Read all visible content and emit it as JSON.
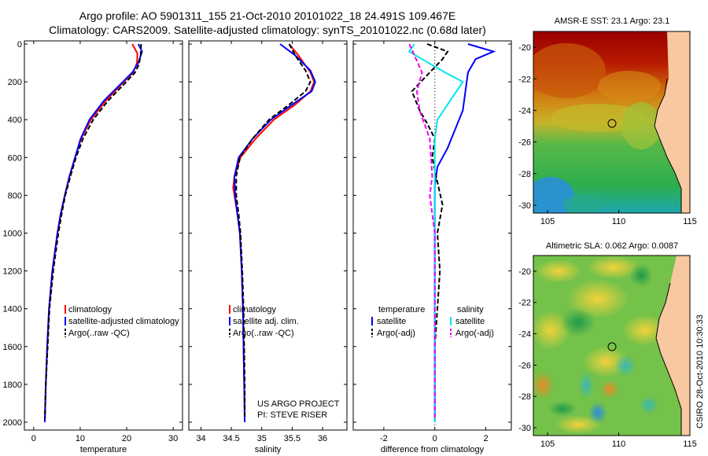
{
  "header": {
    "line1": "Argo profile: AO 5901311_155 21-Oct-2010 20101022_18 24.491S 109.467E",
    "line2": "Climatology: CARS2009. Satellite-adjusted climatology: synTS_20101022.nc (0.68d later)"
  },
  "side_stamp": "CSIRO 28-Oct-2010 10:30:33",
  "colors": {
    "red": "#ff0000",
    "blue": "#0000ff",
    "black": "#000000",
    "cyan": "#00e5ee",
    "magenta": "#ee00ee"
  },
  "chart_data": [
    {
      "type": "line",
      "id": "temperature",
      "xlabel": "temperature",
      "xlim": [
        -2,
        32
      ],
      "ylim": [
        2000,
        0
      ],
      "reversed_y": true,
      "xticks": [
        "0",
        "10",
        "20",
        "30"
      ],
      "yticks": [
        "0",
        "200",
        "400",
        "600",
        "800",
        "1000",
        "1200",
        "1400",
        "1600",
        "1800",
        "2000"
      ],
      "legend": [
        "climatology",
        "satellite-adjusted climatology",
        "Argo(..raw -QC)"
      ],
      "series": [
        {
          "name": "climatology",
          "color": "red",
          "points": [
            [
              21.2,
              0
            ],
            [
              22.3,
              50
            ],
            [
              22.2,
              100
            ],
            [
              21.4,
              150
            ],
            [
              19.4,
              200
            ],
            [
              15.5,
              300
            ],
            [
              12.3,
              400
            ],
            [
              10.2,
              500
            ],
            [
              8.9,
              600
            ],
            [
              7.7,
              700
            ],
            [
              6.7,
              800
            ],
            [
              5.8,
              900
            ],
            [
              5.1,
              1000
            ],
            [
              4.0,
              1200
            ],
            [
              3.3,
              1400
            ],
            [
              2.9,
              1600
            ],
            [
              2.6,
              1800
            ],
            [
              2.4,
              2000
            ]
          ]
        },
        {
          "name": "satellite-adjusted climatology",
          "color": "blue",
          "points": [
            [
              22.5,
              0
            ],
            [
              23.3,
              40
            ],
            [
              22.5,
              100
            ],
            [
              21.2,
              150
            ],
            [
              19.2,
              200
            ],
            [
              15.1,
              300
            ],
            [
              12.0,
              400
            ],
            [
              10.1,
              500
            ],
            [
              8.9,
              600
            ],
            [
              7.7,
              700
            ],
            [
              6.7,
              800
            ],
            [
              5.8,
              900
            ],
            [
              5.1,
              1000
            ],
            [
              4.0,
              1200
            ],
            [
              3.3,
              1400
            ],
            [
              2.9,
              1600
            ],
            [
              2.6,
              1800
            ],
            [
              2.4,
              2000
            ]
          ]
        },
        {
          "name": "Argo(..raw -QC)",
          "color": "black",
          "dashed": true,
          "points": [
            [
              23.1,
              0
            ],
            [
              23.0,
              60
            ],
            [
              22.6,
              110
            ],
            [
              21.8,
              150
            ],
            [
              19.9,
              200
            ],
            [
              16.0,
              300
            ],
            [
              12.8,
              400
            ],
            [
              10.6,
              500
            ],
            [
              9.1,
              600
            ],
            [
              7.9,
              700
            ],
            [
              6.8,
              800
            ],
            [
              6.0,
              900
            ],
            [
              5.3,
              1000
            ],
            [
              4.2,
              1200
            ],
            [
              3.4,
              1400
            ],
            [
              3.0,
              1600
            ],
            [
              2.6,
              1800
            ],
            [
              2.4,
              1980
            ]
          ]
        }
      ]
    },
    {
      "type": "line",
      "id": "salinity",
      "xlabel": "salinity",
      "xlim": [
        33.8,
        36.4
      ],
      "ylim": [
        2000,
        0
      ],
      "reversed_y": true,
      "xticks": [
        "34",
        "34.5",
        "35",
        "35.5",
        "36"
      ],
      "legend": [
        "climatology",
        "satellite adj. clim.",
        "Argo(..raw -QC)"
      ],
      "annotation": [
        "US ARGO PROJECT",
        "PI: STEVE RISER"
      ],
      "series": [
        {
          "name": "climatology",
          "color": "red",
          "points": [
            [
              35.45,
              0
            ],
            [
              35.6,
              60
            ],
            [
              35.8,
              150
            ],
            [
              35.86,
              200
            ],
            [
              35.8,
              250
            ],
            [
              35.55,
              320
            ],
            [
              35.2,
              400
            ],
            [
              34.9,
              500
            ],
            [
              34.65,
              600
            ],
            [
              34.55,
              700
            ],
            [
              34.53,
              760
            ],
            [
              34.55,
              800
            ],
            [
              34.6,
              900
            ],
            [
              34.64,
              1000
            ],
            [
              34.67,
              1200
            ],
            [
              34.69,
              1400
            ],
            [
              34.7,
              1600
            ],
            [
              34.71,
              1800
            ],
            [
              34.72,
              2000
            ]
          ]
        },
        {
          "name": "satellite adj. clim.",
          "color": "blue",
          "points": [
            [
              35.3,
              0
            ],
            [
              35.55,
              60
            ],
            [
              35.8,
              140
            ],
            [
              35.88,
              200
            ],
            [
              35.82,
              250
            ],
            [
              35.5,
              320
            ],
            [
              35.15,
              400
            ],
            [
              34.85,
              500
            ],
            [
              34.62,
              600
            ],
            [
              34.55,
              700
            ],
            [
              34.56,
              800
            ],
            [
              34.6,
              900
            ],
            [
              34.64,
              1000
            ],
            [
              34.67,
              1200
            ],
            [
              34.69,
              1400
            ],
            [
              34.7,
              1600
            ],
            [
              34.71,
              1800
            ],
            [
              34.72,
              2000
            ]
          ]
        },
        {
          "name": "Argo(..raw -QC)",
          "color": "black",
          "dashed": true,
          "points": [
            [
              35.45,
              0
            ],
            [
              35.55,
              60
            ],
            [
              35.72,
              140
            ],
            [
              35.8,
              200
            ],
            [
              35.72,
              250
            ],
            [
              35.45,
              320
            ],
            [
              35.12,
              400
            ],
            [
              34.85,
              500
            ],
            [
              34.64,
              600
            ],
            [
              34.58,
              700
            ],
            [
              34.58,
              800
            ],
            [
              34.62,
              900
            ],
            [
              34.65,
              1000
            ],
            [
              34.68,
              1200
            ],
            [
              34.7,
              1400
            ],
            [
              34.71,
              1600
            ],
            [
              34.72,
              1800
            ],
            [
              34.72,
              1980
            ]
          ]
        }
      ]
    },
    {
      "type": "line",
      "id": "difference",
      "xlabel": "difference from climatology",
      "xlim": [
        -3.2,
        3.0
      ],
      "ylim": [
        2000,
        0
      ],
      "reversed_y": true,
      "xticks": [
        "-2",
        "0",
        "2"
      ],
      "legend_left_title": "temperature",
      "legend_left": [
        "satellite",
        "Argo(-adj)"
      ],
      "legend_right_title": "salinity",
      "legend_right": [
        "satellite",
        "Argo(-adj)"
      ],
      "series": [
        {
          "name": "satellite",
          "group": "temperature",
          "color": "blue",
          "points": [
            [
              1.3,
              0
            ],
            [
              2.3,
              40
            ],
            [
              1.6,
              80
            ],
            [
              1.3,
              150
            ],
            [
              1.2,
              250
            ],
            [
              1.1,
              350
            ],
            [
              0.8,
              450
            ],
            [
              0.5,
              550
            ],
            [
              0.1,
              650
            ],
            [
              0.0,
              750
            ],
            [
              0.0,
              900
            ],
            [
              0.0,
              1200
            ],
            [
              0.0,
              1600
            ],
            [
              0.0,
              2000
            ]
          ]
        },
        {
          "name": "Argo(-adj)",
          "group": "temperature",
          "color": "black",
          "dashed": true,
          "points": [
            [
              -0.3,
              0
            ],
            [
              0.5,
              40
            ],
            [
              0.3,
              80
            ],
            [
              -0.2,
              150
            ],
            [
              -0.9,
              250
            ],
            [
              -0.6,
              350
            ],
            [
              -0.3,
              420
            ],
            [
              0.0,
              500
            ],
            [
              -0.1,
              600
            ],
            [
              0.05,
              700
            ],
            [
              0.3,
              850
            ],
            [
              0.1,
              1000
            ],
            [
              0.2,
              1200
            ],
            [
              0.1,
              1400
            ],
            [
              0.0,
              1600
            ],
            [
              0.0,
              1800
            ],
            [
              0.0,
              1980
            ]
          ]
        },
        {
          "name": "satellite",
          "group": "salinity",
          "color": "cyan",
          "points": [
            [
              -0.8,
              0
            ],
            [
              -1.0,
              40
            ],
            [
              -0.5,
              80
            ],
            [
              0.4,
              150
            ],
            [
              1.1,
              200
            ],
            [
              0.6,
              300
            ],
            [
              0.1,
              400
            ],
            [
              0.0,
              500
            ],
            [
              0.0,
              700
            ],
            [
              0.0,
              1000
            ],
            [
              0.0,
              1400
            ],
            [
              0.0,
              2000
            ]
          ]
        },
        {
          "name": "Argo(-adj)",
          "group": "salinity",
          "color": "magenta",
          "dashed": true,
          "points": [
            [
              -1.0,
              0
            ],
            [
              -0.8,
              60
            ],
            [
              -0.5,
              150
            ],
            [
              -0.7,
              250
            ],
            [
              -0.6,
              350
            ],
            [
              -0.2,
              500
            ],
            [
              -0.1,
              700
            ],
            [
              -0.2,
              800
            ],
            [
              0.0,
              1000
            ],
            [
              0.0,
              1400
            ],
            [
              0.0,
              1980
            ]
          ]
        }
      ]
    },
    {
      "type": "heatmap",
      "id": "sst-map",
      "title": "AMSR-E SST: 23.1 Argo: 23.1",
      "xlim": [
        104,
        115
      ],
      "ylim": [
        -30.5,
        -19
      ],
      "xticks": [
        "105",
        "110",
        "115"
      ],
      "yticks": [
        "-20",
        "-22",
        "-24",
        "-26",
        "-28",
        "-30"
      ],
      "float_position": [
        109.467,
        -24.491
      ]
    },
    {
      "type": "heatmap",
      "id": "sla-map",
      "title": "Altimetric SLA: 0.062 Argo: 0.0087",
      "xlim": [
        104,
        115
      ],
      "ylim": [
        -30.5,
        -19
      ],
      "xticks": [
        "105",
        "110",
        "115"
      ],
      "yticks": [
        "-20",
        "-22",
        "-24",
        "-26",
        "-28",
        "-30"
      ],
      "float_position": [
        109.467,
        -24.491
      ]
    }
  ]
}
